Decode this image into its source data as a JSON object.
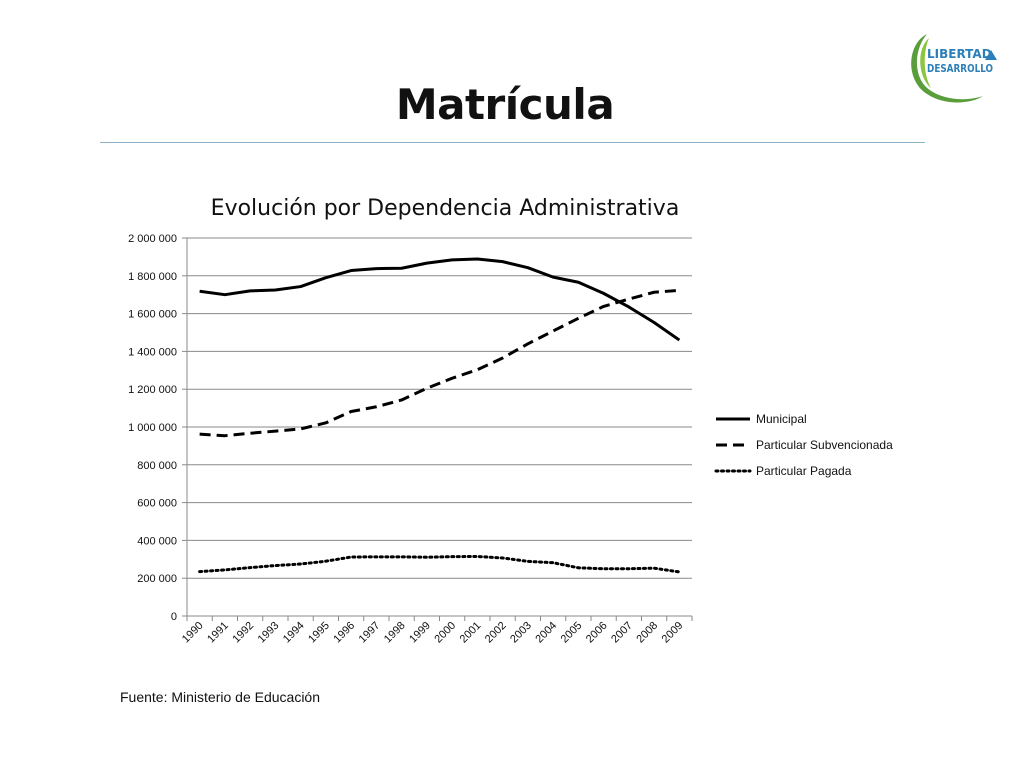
{
  "slide": {
    "title": "Matrícula",
    "source": "Fuente: Ministerio de Educación",
    "logo": {
      "line1": "LIBERTAD",
      "line2": "DESARROLLO",
      "icon": "mountain-icon",
      "colors": [
        "#5a9e3c",
        "#2c7fb8"
      ]
    }
  },
  "chart_data": {
    "type": "line",
    "title": "Evolución por Dependencia Administrativa",
    "xlabel": "",
    "ylabel": "",
    "ylim": [
      0,
      2000000
    ],
    "y_ticks": [
      0,
      200000,
      400000,
      600000,
      800000,
      1000000,
      1200000,
      1400000,
      1600000,
      1800000,
      2000000
    ],
    "y_tick_labels": [
      "0",
      "200 000",
      "400 000",
      "600 000",
      "800 000",
      "1 000 000",
      "1 200 000",
      "1 400 000",
      "1 600 000",
      "1 800 000",
      "2 000 000"
    ],
    "categories": [
      "1990",
      "1991",
      "1992",
      "1993",
      "1994",
      "1995",
      "1996",
      "1997",
      "1998",
      "1999",
      "2000",
      "2001",
      "2002",
      "2003",
      "2004",
      "2005",
      "2006",
      "2007",
      "2008",
      "2009"
    ],
    "grid": "horizontal",
    "legend": "right",
    "series": [
      {
        "name": "Municipal",
        "style": "solid",
        "values": [
          1718000,
          1700000,
          1720000,
          1725000,
          1743000,
          1790000,
          1828000,
          1838000,
          1840000,
          1867000,
          1884000,
          1889000,
          1875000,
          1843000,
          1793000,
          1766000,
          1707000,
          1635000,
          1553000,
          1460000
        ]
      },
      {
        "name": "Particular Subvencionada",
        "style": "dashed",
        "values": [
          962000,
          954000,
          967000,
          978000,
          990000,
          1022000,
          1082000,
          1107000,
          1143000,
          1205000,
          1258000,
          1303000,
          1365000,
          1440000,
          1508000,
          1575000,
          1638000,
          1677000,
          1713000,
          1723000
        ]
      },
      {
        "name": "Particular Pagada",
        "style": "dotted",
        "values": [
          235000,
          244000,
          256000,
          267000,
          275000,
          290000,
          312000,
          313000,
          313000,
          311000,
          314000,
          315000,
          307000,
          289000,
          282000,
          255000,
          250000,
          250000,
          253000,
          233000
        ]
      }
    ],
    "line_color": "#000000",
    "grid_color": "#8a8a8a"
  }
}
